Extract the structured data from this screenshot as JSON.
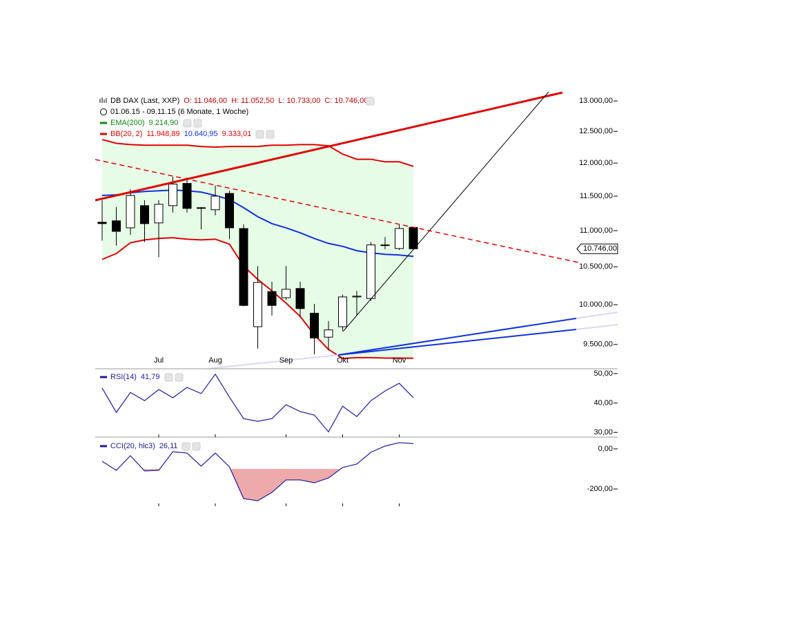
{
  "chart_data": [
    {
      "type": "candlestick",
      "log_scale": true,
      "title": "DB DAX (Last, XXP)",
      "ohlc_labels": [
        "O: 11.046,00",
        "H: 11.052,50",
        "L: 10.733,00",
        "C: 10.746,00"
      ],
      "subtitle": "01.06.15 - 09.11.15 (6 Monate, 1 Woche)",
      "ema_label": "EMA(200)",
      "ema_value_label": "9.214,90",
      "bb_label": "BB(20, 2)",
      "bb_value_labels": [
        "11.948,89",
        "10.640,95",
        "9.333,01"
      ],
      "categories": [
        null,
        null,
        null,
        null,
        "Jul",
        null,
        null,
        null,
        "Aug",
        null,
        null,
        null,
        null,
        "Sep",
        null,
        null,
        null,
        "Okt",
        null,
        null,
        null,
        "Nov",
        null
      ],
      "candles": [
        {
          "o": 11120,
          "h": 11440,
          "l": 10860,
          "c": 11100
        },
        {
          "o": 11140,
          "h": 11340,
          "l": 10790,
          "c": 10990
        },
        {
          "o": 11040,
          "h": 11600,
          "l": 10940,
          "c": 11510
        },
        {
          "o": 11360,
          "h": 11440,
          "l": 10840,
          "c": 11100
        },
        {
          "o": 11110,
          "h": 11440,
          "l": 10630,
          "c": 11380
        },
        {
          "o": 11360,
          "h": 11790,
          "l": 11260,
          "c": 11680
        },
        {
          "o": 11690,
          "h": 11780,
          "l": 11260,
          "c": 11320
        },
        {
          "o": 11330,
          "h": 11340,
          "l": 11020,
          "c": 11320
        },
        {
          "o": 11300,
          "h": 11660,
          "l": 11220,
          "c": 11500
        },
        {
          "o": 11540,
          "h": 11580,
          "l": 10880,
          "c": 11040
        },
        {
          "o": 11030,
          "h": 11090,
          "l": 9980,
          "c": 9990
        },
        {
          "o": 9720,
          "h": 10510,
          "l": 9450,
          "c": 10290
        },
        {
          "o": 10170,
          "h": 10300,
          "l": 9860,
          "c": 9990
        },
        {
          "o": 10090,
          "h": 10510,
          "l": 10060,
          "c": 10200
        },
        {
          "o": 10210,
          "h": 10300,
          "l": 9840,
          "c": 9950
        },
        {
          "o": 9890,
          "h": 10010,
          "l": 9380,
          "c": 9580
        },
        {
          "o": 9590,
          "h": 9790,
          "l": 9430,
          "c": 9680
        },
        {
          "o": 9720,
          "h": 10130,
          "l": 9670,
          "c": 10100
        },
        {
          "o": 10100,
          "h": 10180,
          "l": 9870,
          "c": 10110
        },
        {
          "o": 10080,
          "h": 10840,
          "l": 10050,
          "c": 10800
        },
        {
          "o": 10790,
          "h": 10910,
          "l": 10740,
          "c": 10800
        },
        {
          "o": 10750,
          "h": 11090,
          "l": 10730,
          "c": 11030
        },
        {
          "o": 11046,
          "h": 11052.5,
          "l": 10733,
          "c": 10746
        }
      ],
      "up_color": "#ffffff",
      "down_color": "#000000",
      "bb_upper": {
        "color": "#e00000",
        "values": [
          12370,
          12310,
          12290,
          12280,
          12280,
          12280,
          12280,
          12260,
          12250,
          12260,
          12260,
          12260,
          12280,
          12280,
          12290,
          12290,
          12270,
          12140,
          12060,
          12060,
          12020,
          12020,
          11948.89
        ]
      },
      "bb_middle": {
        "color": "#1030e0",
        "values": [
          11510,
          11520,
          11550,
          11570,
          11580,
          11590,
          11580,
          11560,
          11510,
          11450,
          11330,
          11200,
          11100,
          11040,
          10970,
          10890,
          10820,
          10780,
          10720,
          10690,
          10670,
          10660,
          10640.95
        ]
      },
      "bb_lower": {
        "color": "#e00000",
        "values": [
          10600,
          10680,
          10830,
          10870,
          10890,
          10900,
          10880,
          10870,
          10880,
          10810,
          10510,
          10330,
          10180,
          10020,
          9850,
          9620,
          9440,
          9330,
          9340,
          9340,
          9335,
          9335,
          9333.01
        ]
      },
      "band_fill": "#e6fce6",
      "last_price": {
        "value": 10746,
        "label": "10.746,00"
      },
      "ylim": [
        9240,
        13130
      ],
      "yticks": [
        {
          "value": 13000,
          "label": "13.000,00"
        },
        {
          "value": 12500,
          "label": "12.500,00"
        },
        {
          "value": 12000,
          "label": "12.000,00"
        },
        {
          "value": 11500,
          "label": "11.500,00"
        },
        {
          "value": 11000,
          "label": "11.000,00"
        },
        {
          "value": 10500,
          "label": "10.500,00"
        },
        {
          "value": 10000,
          "label": "10.000,00"
        },
        {
          "value": 9500,
          "label": "9.500,00"
        }
      ]
    },
    {
      "type": "line",
      "title": "RSI(14)",
      "value_label": "41,79",
      "color": "#1a1a9c",
      "values": [
        45.1,
        36.8,
        43.6,
        40.8,
        44.6,
        41.8,
        45.3,
        43.2,
        49.8,
        42.0,
        34.7,
        33.8,
        34.7,
        39.4,
        37.1,
        35.9,
        30.2,
        38.9,
        35.4,
        40.8,
        44.1,
        46.7,
        41.79
      ],
      "ylim": [
        28.4,
        51.4
      ],
      "yticks": [
        {
          "value": 50,
          "label": "50,00"
        },
        {
          "value": 40,
          "label": "40,00"
        },
        {
          "value": 30,
          "label": "30,00"
        }
      ]
    },
    {
      "type": "line",
      "title": "CCI(20, hlc3)",
      "value_label": "26,11",
      "color": "#1a1a9c",
      "values": [
        -62,
        -107,
        -34,
        -110,
        -107,
        -14,
        -21,
        -86,
        -21,
        -90,
        -248,
        -259,
        -217,
        -155,
        -155,
        -169,
        -145,
        -93,
        -76,
        -17,
        14,
        31,
        26.11
      ],
      "fill_below": -100,
      "fill_color": "#eeaaaa",
      "ylim": [
        -286,
        48
      ],
      "yticks": [
        {
          "value": 0,
          "label": "0,00"
        },
        {
          "value": -200,
          "label": "-200,00"
        }
      ]
    }
  ]
}
